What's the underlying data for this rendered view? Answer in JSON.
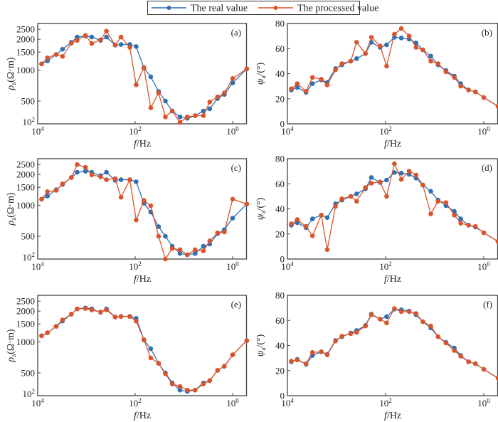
{
  "legend": {
    "items": [
      {
        "label": "The real value",
        "color": "#2f6fb3"
      },
      {
        "label": "The processed value",
        "color": "#d9542b"
      }
    ]
  },
  "chart_data": [
    {
      "type": "line",
      "panel": "(a)",
      "yscale": "log",
      "xlabel_italic": "f",
      "xlabel_unit": "/Hz",
      "ylabel_sym": "ρ",
      "ylabel_sub": "a",
      "ylabel_unit": "(Ω·m)",
      "xticks": [
        {
          "exp": "4",
          "log": 4
        },
        {
          "exp": "2",
          "log": 2
        },
        {
          "exp": "0",
          "log": 0
        }
      ],
      "yticks": [
        {
          "label": "2500",
          "v": 2500
        },
        {
          "label": "2000",
          "v": 2000
        },
        {
          "label": "1500",
          "v": 1500
        },
        {
          "label": "1000",
          "v": 1000
        },
        {
          "label": "500",
          "v": 500
        }
      ],
      "ybottom_label": {
        "base": "10",
        "exp": "2"
      },
      "xlim_log10": [
        4,
        -0.29
      ],
      "ylim": [
        300,
        2850
      ],
      "x_log10": [
        3.92,
        3.8,
        3.62,
        3.49,
        3.31,
        3.19,
        3.02,
        2.89,
        2.71,
        2.59,
        2.41,
        2.29,
        2.11,
        1.98,
        1.82,
        1.68,
        1.52,
        1.38,
        1.24,
        1.08,
        0.93,
        0.77,
        0.6,
        0.47,
        0.31,
        0.17,
        0.0,
        -0.29
      ],
      "series": [
        {
          "name": "The real value",
          "values": [
            1150,
            1230,
            1420,
            1600,
            1870,
            2100,
            2150,
            2100,
            1950,
            2100,
            1750,
            1780,
            1780,
            1700,
            1050,
            860,
            620,
            500,
            400,
            350,
            340,
            360,
            400,
            420,
            530,
            580,
            750,
            1030
          ]
        },
        {
          "name": "The processed value",
          "values": [
            1150,
            1320,
            1420,
            1360,
            1830,
            1950,
            2180,
            1820,
            1980,
            2400,
            1760,
            2100,
            1670,
            720,
            1060,
            430,
            600,
            350,
            400,
            310,
            350,
            360,
            360,
            490,
            550,
            600,
            830,
            1030
          ]
        }
      ]
    },
    {
      "type": "line",
      "panel": "(b)",
      "yscale": "linear",
      "xlabel_italic": "f",
      "xlabel_unit": "/Hz",
      "ylabel_sym": "ψ",
      "ylabel_sub": "a",
      "ylabel_unit": "/(°)",
      "xticks": [
        {
          "exp": "4",
          "log": 4
        },
        {
          "exp": "2",
          "log": 2
        },
        {
          "exp": "0",
          "log": 0
        }
      ],
      "yticks": [
        {
          "label": "80",
          "v": 80
        },
        {
          "label": "60",
          "v": 60
        },
        {
          "label": "40",
          "v": 40
        },
        {
          "label": "20",
          "v": 20
        },
        {
          "label": "0",
          "v": 0
        }
      ],
      "xlim_log10": [
        4,
        -0.29
      ],
      "ylim": [
        0,
        80
      ],
      "x_log10": [
        3.92,
        3.8,
        3.62,
        3.49,
        3.31,
        3.19,
        3.02,
        2.89,
        2.71,
        2.59,
        2.41,
        2.29,
        2.11,
        1.98,
        1.82,
        1.68,
        1.52,
        1.38,
        1.24,
        1.08,
        0.93,
        0.77,
        0.6,
        0.47,
        0.31,
        0.17,
        0.0,
        -0.29
      ],
      "series": [
        {
          "name": "The real value",
          "values": [
            27,
            29,
            25,
            32,
            35,
            33,
            44,
            47,
            50,
            52,
            56,
            65,
            61,
            63,
            69,
            68.5,
            67.5,
            64.5,
            59,
            54,
            47,
            42.5,
            38,
            32,
            27,
            25.5,
            21,
            14
          ]
        },
        {
          "name": "The processed value",
          "values": [
            28,
            32,
            26,
            37,
            35.5,
            31,
            43,
            48,
            50,
            65,
            56,
            69,
            62,
            46,
            71.5,
            76,
            70,
            61,
            59,
            50,
            48,
            41.5,
            37,
            30,
            27,
            25.5,
            21,
            14
          ]
        }
      ]
    },
    {
      "type": "line",
      "panel": "(c)",
      "yscale": "log",
      "xlabel_italic": "f",
      "xlabel_unit": "/Hz",
      "ylabel_sym": "ρ",
      "ylabel_sub": "a",
      "ylabel_unit": "(Ω·m)",
      "xticks": [
        {
          "exp": "4",
          "log": 4
        },
        {
          "exp": "2",
          "log": 2
        },
        {
          "exp": "0",
          "log": 0
        }
      ],
      "yticks": [
        {
          "label": "2500",
          "v": 2500
        },
        {
          "label": "2000",
          "v": 2000
        },
        {
          "label": "1500",
          "v": 1500
        },
        {
          "label": "1000",
          "v": 1000
        },
        {
          "label": "500",
          "v": 500
        }
      ],
      "ybottom_label": {
        "base": "10",
        "exp": "2"
      },
      "xlim_log10": [
        4,
        -0.29
      ],
      "ylim": [
        300,
        2850
      ],
      "x_log10": [
        3.92,
        3.8,
        3.62,
        3.49,
        3.31,
        3.19,
        3.02,
        2.89,
        2.71,
        2.59,
        2.41,
        2.29,
        2.11,
        1.98,
        1.82,
        1.68,
        1.52,
        1.38,
        1.24,
        1.08,
        0.93,
        0.77,
        0.6,
        0.47,
        0.31,
        0.17,
        0.0,
        -0.29
      ],
      "series": [
        {
          "name": "The real value",
          "values": [
            1150,
            1230,
            1420,
            1600,
            1870,
            2100,
            2150,
            2100,
            1950,
            2100,
            1750,
            1780,
            1780,
            1700,
            1050,
            860,
            620,
            500,
            400,
            340,
            330,
            340,
            400,
            420,
            530,
            580,
            750,
            1030
          ]
        },
        {
          "name": "The processed value",
          "values": [
            1150,
            1360,
            1400,
            1620,
            1870,
            2500,
            2350,
            1980,
            1900,
            1780,
            1820,
            1200,
            1780,
            720,
            1120,
            990,
            500,
            300,
            380,
            370,
            330,
            370,
            360,
            450,
            540,
            550,
            1150,
            1030
          ]
        }
      ]
    },
    {
      "type": "line",
      "panel": "(d)",
      "yscale": "linear",
      "xlabel_italic": "f",
      "xlabel_unit": "/Hz",
      "ylabel_sym": "ψ",
      "ylabel_sub": "a",
      "ylabel_unit": "/(°)",
      "xticks": [
        {
          "exp": "4",
          "log": 4
        },
        {
          "exp": "2",
          "log": 2
        },
        {
          "exp": "0",
          "log": 0
        }
      ],
      "yticks": [
        {
          "label": "80",
          "v": 80
        },
        {
          "label": "60",
          "v": 60
        },
        {
          "label": "40",
          "v": 40
        },
        {
          "label": "20",
          "v": 20
        },
        {
          "label": "0",
          "v": 0
        }
      ],
      "xlim_log10": [
        4,
        -0.29
      ],
      "ylim": [
        0,
        80
      ],
      "x_log10": [
        3.92,
        3.8,
        3.62,
        3.49,
        3.31,
        3.19,
        3.02,
        2.89,
        2.71,
        2.59,
        2.41,
        2.29,
        2.11,
        1.98,
        1.82,
        1.68,
        1.52,
        1.38,
        1.24,
        1.08,
        0.93,
        0.77,
        0.6,
        0.47,
        0.31,
        0.17,
        0.0,
        -0.29
      ],
      "series": [
        {
          "name": "The real value",
          "values": [
            27,
            29,
            25,
            32,
            35,
            33,
            44,
            47,
            50,
            52,
            56,
            65,
            61,
            63,
            69,
            68.5,
            67.5,
            64.5,
            59,
            54,
            47,
            42.5,
            38,
            32,
            27,
            25.5,
            21,
            14
          ]
        },
        {
          "name": "The processed value",
          "values": [
            28,
            31.5,
            26,
            18.5,
            35,
            7.5,
            42,
            48,
            50,
            46,
            57,
            60.5,
            61.5,
            50,
            76,
            63.5,
            70,
            67,
            59,
            36,
            46,
            45,
            35,
            28.5,
            27,
            26,
            21,
            14
          ]
        }
      ]
    },
    {
      "type": "line",
      "panel": "(e)",
      "yscale": "log",
      "xlabel_italic": "f",
      "xlabel_unit": "/Hz",
      "ylabel_sym": "ρ",
      "ylabel_sub": "a",
      "ylabel_unit": "(Ω·m)",
      "xticks": [
        {
          "exp": "4",
          "log": 4
        },
        {
          "exp": "2",
          "log": 2
        },
        {
          "exp": "0",
          "log": 0
        }
      ],
      "yticks": [
        {
          "label": "2500",
          "v": 2500
        },
        {
          "label": "2000",
          "v": 2000
        },
        {
          "label": "1500",
          "v": 1500
        },
        {
          "label": "1000",
          "v": 1000
        },
        {
          "label": "500",
          "v": 500
        }
      ],
      "ybottom_label": {
        "base": "10",
        "exp": "2"
      },
      "xlim_log10": [
        4,
        -0.29
      ],
      "ylim": [
        300,
        2850
      ],
      "x_log10": [
        3.92,
        3.8,
        3.62,
        3.49,
        3.31,
        3.19,
        3.02,
        2.89,
        2.71,
        2.59,
        2.41,
        2.29,
        2.11,
        1.98,
        1.82,
        1.68,
        1.52,
        1.38,
        1.24,
        1.08,
        0.93,
        0.77,
        0.6,
        0.47,
        0.31,
        0.17,
        0.0,
        -0.29
      ],
      "series": [
        {
          "name": "The real value",
          "values": [
            1150,
            1230,
            1420,
            1600,
            1870,
            2100,
            2150,
            2100,
            1950,
            2100,
            1750,
            1780,
            1780,
            1700,
            1050,
            860,
            620,
            500,
            400,
            340,
            330,
            340,
            400,
            420,
            530,
            580,
            750,
            1030
          ]
        },
        {
          "name": "The processed value",
          "values": [
            1150,
            1230,
            1420,
            1640,
            1870,
            2100,
            2120,
            2050,
            1960,
            2050,
            1750,
            1770,
            1770,
            1600,
            1050,
            700,
            620,
            490,
            390,
            370,
            340,
            340,
            390,
            420,
            530,
            580,
            750,
            1030
          ]
        }
      ]
    },
    {
      "type": "line",
      "panel": "(f)",
      "yscale": "linear",
      "xlabel_italic": "f",
      "xlabel_unit": "/Hz",
      "ylabel_sym": "ψ",
      "ylabel_sub": "a",
      "ylabel_unit": "/(°)",
      "xticks": [
        {
          "exp": "4",
          "log": 4
        },
        {
          "exp": "2",
          "log": 2
        },
        {
          "exp": "0",
          "log": 0
        }
      ],
      "yticks": [
        {
          "label": "80",
          "v": 80
        },
        {
          "label": "60",
          "v": 60
        },
        {
          "label": "40",
          "v": 40
        },
        {
          "label": "20",
          "v": 20
        },
        {
          "label": "0",
          "v": 0
        }
      ],
      "xlim_log10": [
        4,
        -0.29
      ],
      "ylim": [
        0,
        80
      ],
      "x_log10": [
        3.92,
        3.8,
        3.62,
        3.49,
        3.31,
        3.19,
        3.02,
        2.89,
        2.71,
        2.59,
        2.41,
        2.29,
        2.11,
        1.98,
        1.82,
        1.68,
        1.52,
        1.38,
        1.24,
        1.08,
        0.93,
        0.77,
        0.6,
        0.47,
        0.31,
        0.17,
        0.0,
        -0.29
      ],
      "series": [
        {
          "name": "The real value",
          "values": [
            27,
            29,
            25,
            32,
            35,
            33,
            44,
            47,
            50,
            52,
            56,
            65,
            61,
            63,
            69,
            68.5,
            67.5,
            64.5,
            59,
            54,
            47,
            42.5,
            38,
            32,
            27,
            25.5,
            21,
            14
          ]
        },
        {
          "name": "The processed value",
          "values": [
            27.5,
            28.5,
            25.5,
            34.5,
            35,
            32.5,
            43.5,
            47.5,
            49.5,
            50.5,
            55.5,
            64.5,
            61,
            58,
            69.5,
            67,
            67,
            65.5,
            59,
            55.5,
            47,
            42,
            36,
            31.5,
            27,
            25.5,
            21,
            14
          ]
        }
      ]
    }
  ]
}
